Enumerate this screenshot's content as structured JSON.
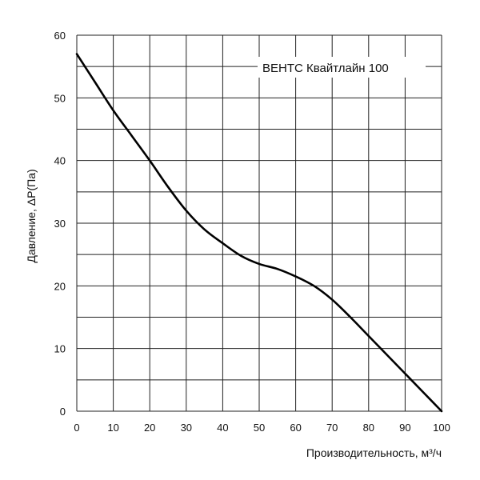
{
  "chart_data": {
    "type": "line",
    "xlabel": "Производительность, м³/ч",
    "ylabel": "Давление,  ΔP(Па)",
    "xlim": [
      0,
      100
    ],
    "ylim": [
      0,
      60
    ],
    "x_ticks": [
      0,
      10,
      20,
      30,
      40,
      50,
      60,
      70,
      80,
      90,
      100
    ],
    "y_ticks": [
      0,
      10,
      20,
      30,
      40,
      50,
      60
    ],
    "x_grid_step": 10,
    "y_grid_step": 5,
    "grid": true,
    "legend_position": "top-right",
    "series": [
      {
        "name": "ВЕНТС Квайтлайн 100",
        "color": "#000000",
        "x": [
          0,
          5,
          10,
          15,
          20,
          25,
          30,
          35,
          40,
          45,
          50,
          55,
          60,
          65,
          70,
          75,
          80,
          85,
          90,
          95,
          100
        ],
        "y": [
          57,
          52.5,
          48,
          44,
          40,
          35.8,
          32,
          29,
          26.8,
          24.8,
          23.5,
          22.7,
          21.5,
          20,
          17.8,
          15,
          12,
          9,
          6,
          3,
          0
        ]
      }
    ]
  }
}
